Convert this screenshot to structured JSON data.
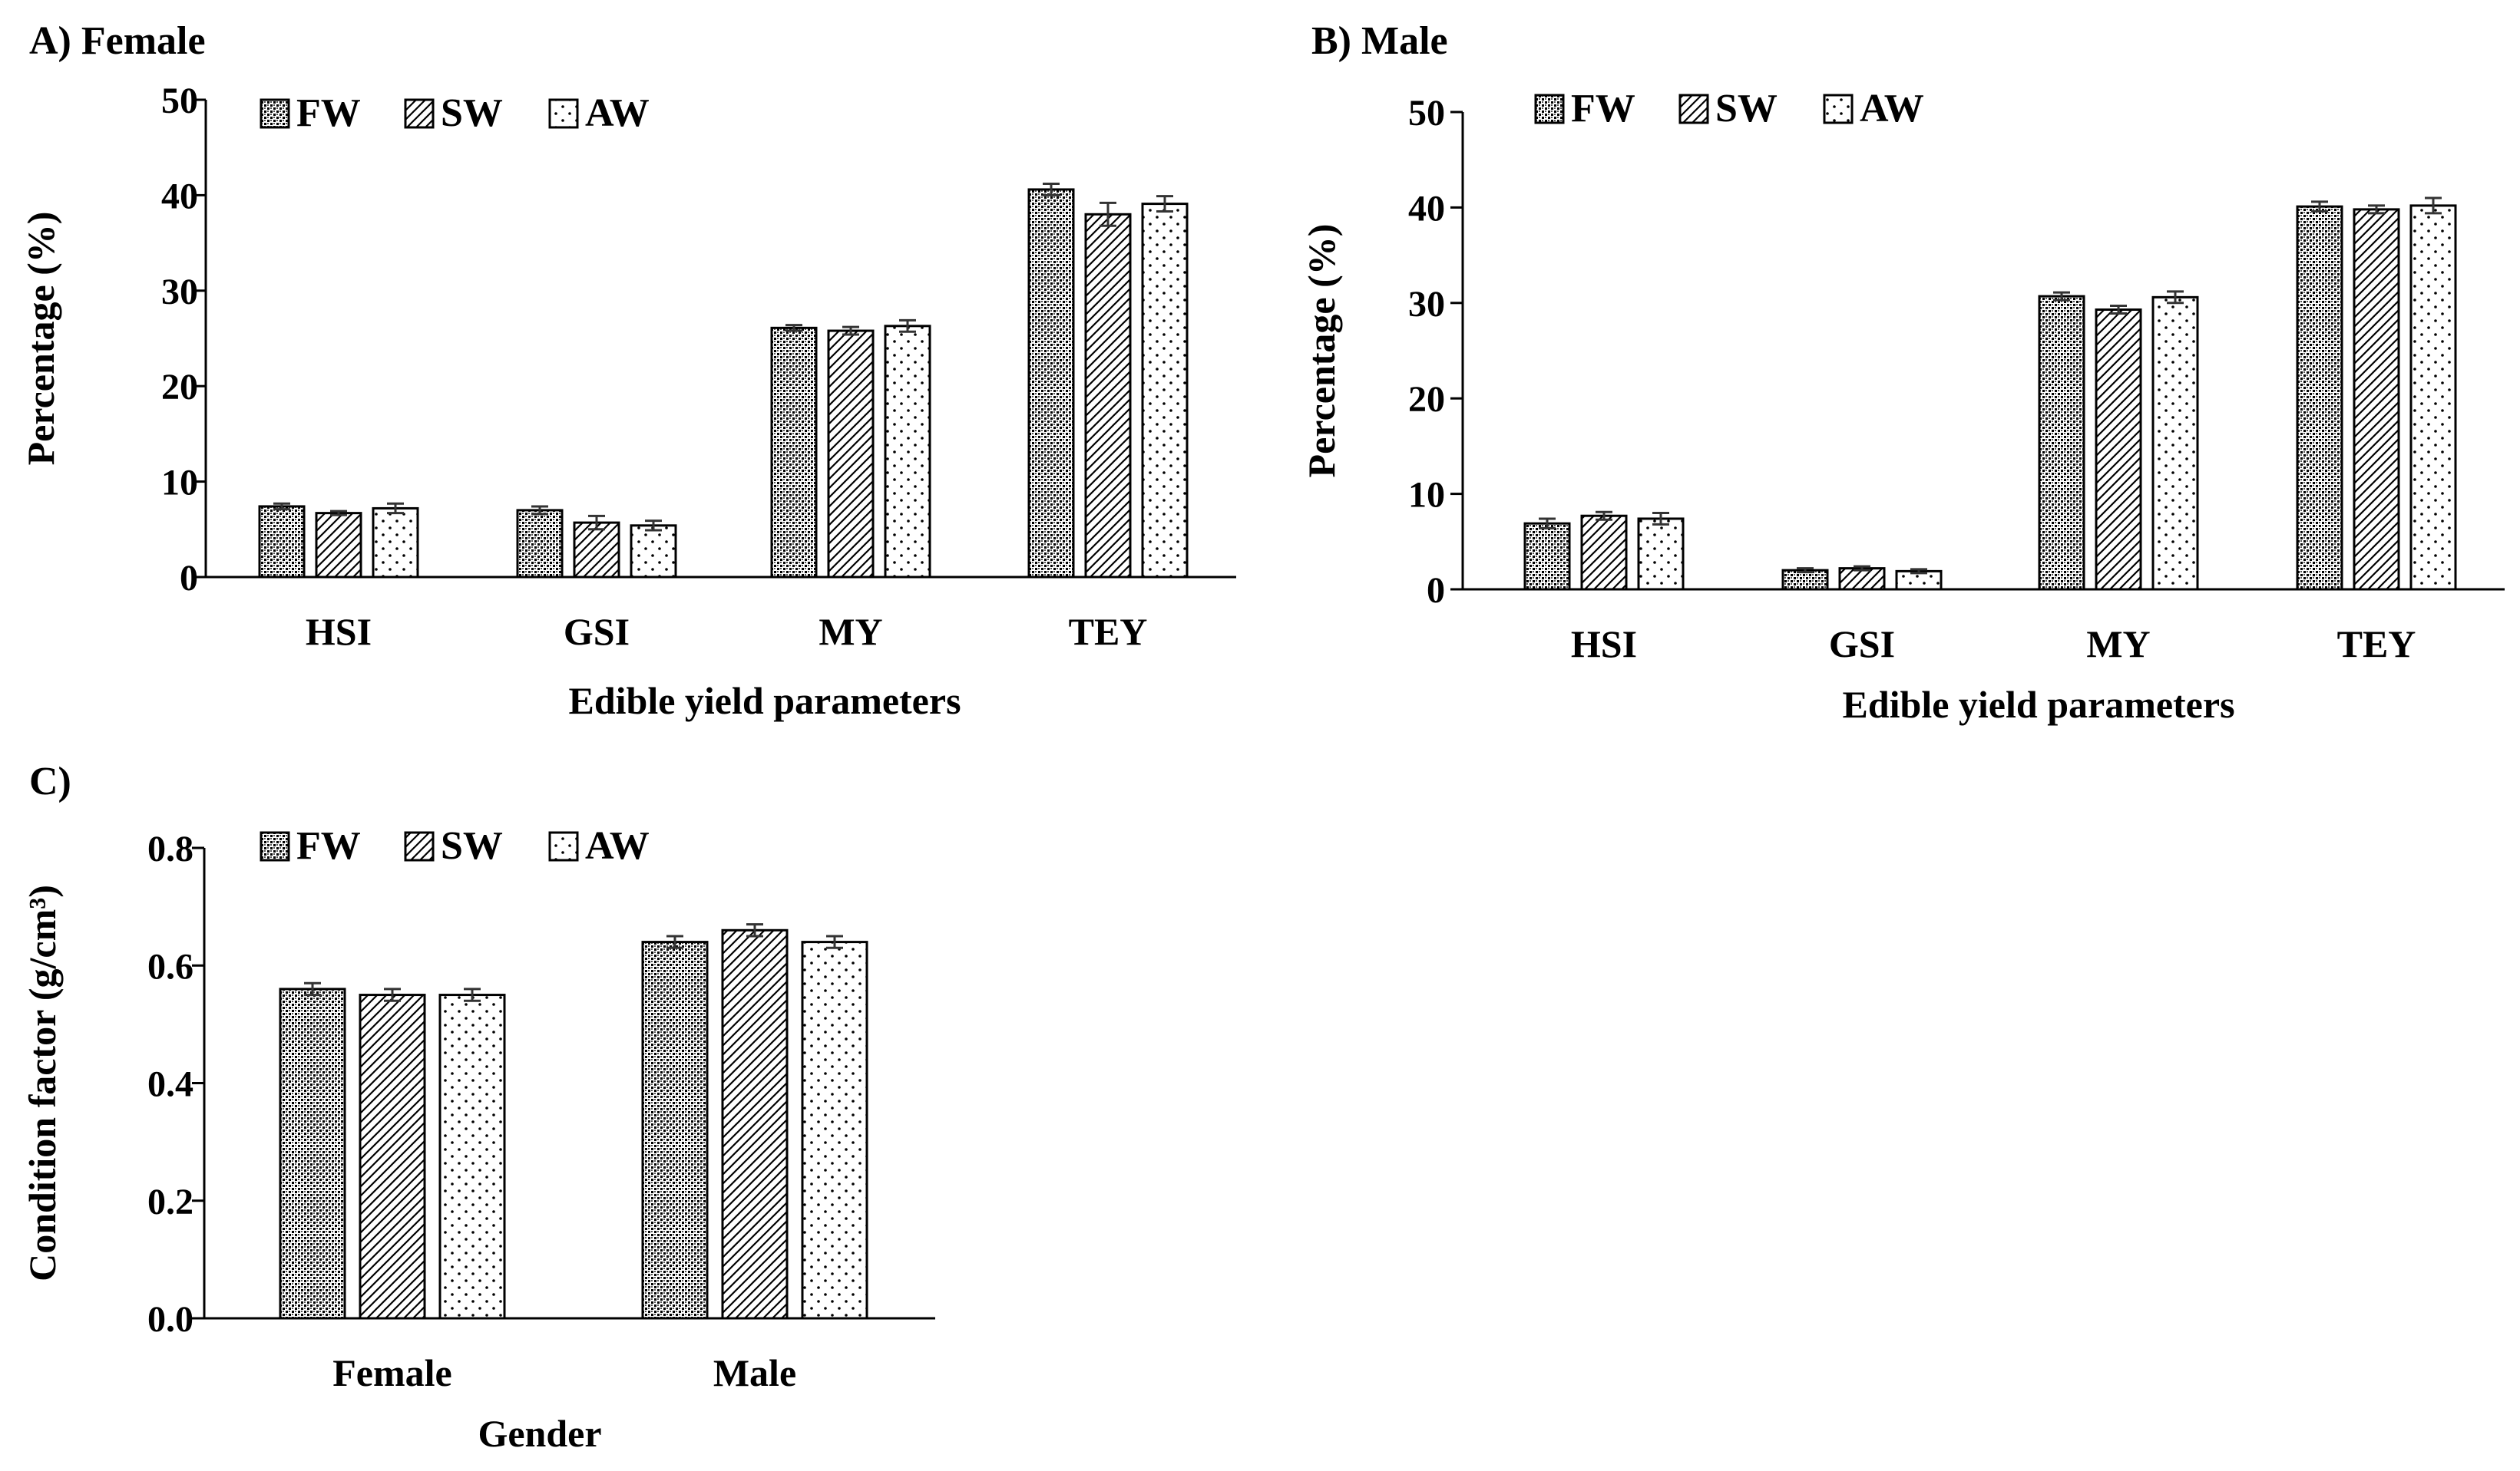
{
  "patterns": {
    "FW": "dense-dots",
    "SW": "diagonal-hatch",
    "AW": "sparse-dots"
  },
  "colors": {
    "ink": "#000000",
    "bar_face": "#ffffff",
    "error_bar": "#333333"
  },
  "chart_data": [
    {
      "id": "A",
      "type": "bar",
      "title": "A) Female",
      "xlabel": "Edible yield parameters",
      "ylabel": "Percentage (%)",
      "ylim": [
        0,
        50
      ],
      "yticks": [
        "0",
        "10",
        "20",
        "30",
        "40",
        "50"
      ],
      "ytick_values": [
        0,
        10,
        20,
        30,
        40,
        50
      ],
      "categories": [
        "HSI",
        "GSI",
        "MY",
        "TEY"
      ],
      "legend": [
        "FW",
        "SW",
        "AW"
      ],
      "legend_position": "top-left",
      "grid": false,
      "series": [
        {
          "name": "FW",
          "values": [
            7.4,
            7.0,
            26.1,
            40.6
          ],
          "errors": [
            0.3,
            0.4,
            0.3,
            0.6
          ]
        },
        {
          "name": "SW",
          "values": [
            6.7,
            5.7,
            25.8,
            38.0
          ],
          "errors": [
            0.2,
            0.7,
            0.4,
            1.2
          ]
        },
        {
          "name": "AW",
          "values": [
            7.2,
            5.4,
            26.3,
            39.1
          ],
          "errors": [
            0.5,
            0.5,
            0.6,
            0.8
          ]
        }
      ]
    },
    {
      "id": "B",
      "type": "bar",
      "title": "B) Male",
      "xlabel": "Edible yield parameters",
      "ylabel": "Percentage (%)",
      "ylim": [
        0,
        50
      ],
      "yticks": [
        "0",
        "10",
        "20",
        "30",
        "40",
        "50"
      ],
      "ytick_values": [
        0,
        10,
        20,
        30,
        40,
        50
      ],
      "categories": [
        "HSI",
        "GSI",
        "MY",
        "TEY"
      ],
      "legend": [
        "FW",
        "SW",
        "AW"
      ],
      "legend_position": "top-left",
      "grid": false,
      "series": [
        {
          "name": "FW",
          "values": [
            6.9,
            2.0,
            30.7,
            40.1
          ],
          "errors": [
            0.5,
            0.2,
            0.4,
            0.5
          ]
        },
        {
          "name": "SW",
          "values": [
            7.7,
            2.2,
            29.3,
            39.8
          ],
          "errors": [
            0.4,
            0.2,
            0.4,
            0.4
          ]
        },
        {
          "name": "AW",
          "values": [
            7.4,
            1.9,
            30.6,
            40.2
          ],
          "errors": [
            0.6,
            0.2,
            0.6,
            0.8
          ]
        }
      ]
    },
    {
      "id": "C",
      "type": "bar",
      "title": "C)",
      "xlabel": "Gender",
      "ylabel": "Condition factor (g/cm³)",
      "ylim": [
        0,
        0.8
      ],
      "yticks": [
        "0.0",
        "0.2",
        "0.4",
        "0.6",
        "0.8"
      ],
      "ytick_values": [
        0,
        0.2,
        0.4,
        0.6,
        0.8
      ],
      "categories": [
        "Female",
        "Male"
      ],
      "legend": [
        "FW",
        "SW",
        "AW"
      ],
      "legend_position": "top-left",
      "grid": false,
      "series": [
        {
          "name": "FW",
          "values": [
            0.56,
            0.64
          ],
          "errors": [
            0.01,
            0.01
          ]
        },
        {
          "name": "SW",
          "values": [
            0.55,
            0.66
          ],
          "errors": [
            0.01,
            0.01
          ]
        },
        {
          "name": "AW",
          "values": [
            0.55,
            0.64
          ],
          "errors": [
            0.01,
            0.01
          ]
        }
      ]
    }
  ]
}
